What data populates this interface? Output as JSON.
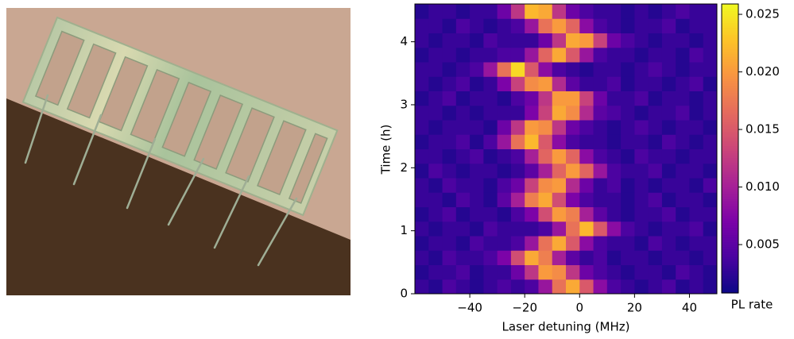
{
  "chart_data": {
    "type": "heatmap",
    "xlabel": "Laser detuning (MHz)",
    "ylabel": "Time (h)",
    "colorbar_label": "PL rate",
    "colormap": "plasma",
    "xlim": [
      -60,
      50
    ],
    "ylim": [
      0,
      4.6
    ],
    "xticks": [
      {
        "value": -40,
        "label": "−40"
      },
      {
        "value": -20,
        "label": "−20"
      },
      0,
      20,
      40
    ],
    "yticks": [
      0,
      1,
      2,
      3,
      4
    ],
    "zlim": [
      0.0008,
      0.0259
    ],
    "zticks": [
      0.005,
      {
        "value": 0.01,
        "label": "0.010"
      },
      0.015,
      {
        "value": 0.02,
        "label": "0.020"
      },
      0.025
    ],
    "xbins": [
      -60,
      -55,
      -50,
      -45,
      -40,
      -35,
      -30,
      -25,
      -20,
      -15,
      -10,
      -5,
      0,
      5,
      10,
      15,
      20,
      25,
      30,
      35,
      40,
      45,
      50
    ],
    "ybins": [
      0,
      0.23,
      0.46,
      0.69,
      0.92,
      1.15,
      1.38,
      1.61,
      1.84,
      2.07,
      2.3,
      2.53,
      2.76,
      2.99,
      3.22,
      3.45,
      3.68,
      3.91,
      4.14,
      4.37,
      4.6
    ],
    "z": [
      [
        0.003,
        0.002,
        0.004,
        0.003,
        0.002,
        0.003,
        0.004,
        0.003,
        0.004,
        0.009,
        0.017,
        0.021,
        0.015,
        0.008,
        0.004,
        0.003,
        0.002,
        0.003,
        0.004,
        0.002,
        0.003,
        0.002
      ],
      [
        0.002,
        0.003,
        0.003,
        0.004,
        0.002,
        0.003,
        0.003,
        0.006,
        0.012,
        0.02,
        0.019,
        0.012,
        0.006,
        0.004,
        0.003,
        0.002,
        0.003,
        0.003,
        0.002,
        0.004,
        0.003,
        0.002
      ],
      [
        0.003,
        0.002,
        0.004,
        0.003,
        0.003,
        0.004,
        0.007,
        0.014,
        0.021,
        0.018,
        0.01,
        0.005,
        0.003,
        0.004,
        0.002,
        0.003,
        0.003,
        0.002,
        0.003,
        0.003,
        0.002,
        0.003
      ],
      [
        0.002,
        0.003,
        0.003,
        0.002,
        0.004,
        0.003,
        0.003,
        0.004,
        0.009,
        0.017,
        0.021,
        0.015,
        0.008,
        0.004,
        0.003,
        0.003,
        0.002,
        0.004,
        0.003,
        0.002,
        0.003,
        0.003
      ],
      [
        0.003,
        0.002,
        0.003,
        0.003,
        0.002,
        0.004,
        0.003,
        0.003,
        0.003,
        0.004,
        0.009,
        0.017,
        0.022,
        0.015,
        0.008,
        0.004,
        0.003,
        0.002,
        0.003,
        0.003,
        0.004,
        0.002
      ],
      [
        0.002,
        0.003,
        0.004,
        0.002,
        0.003,
        0.003,
        0.002,
        0.004,
        0.007,
        0.014,
        0.02,
        0.018,
        0.01,
        0.005,
        0.003,
        0.002,
        0.003,
        0.003,
        0.004,
        0.002,
        0.003,
        0.003
      ],
      [
        0.003,
        0.003,
        0.002,
        0.004,
        0.003,
        0.002,
        0.005,
        0.01,
        0.018,
        0.021,
        0.014,
        0.007,
        0.004,
        0.003,
        0.003,
        0.002,
        0.003,
        0.004,
        0.002,
        0.003,
        0.003,
        0.002
      ],
      [
        0.003,
        0.002,
        0.004,
        0.003,
        0.003,
        0.002,
        0.004,
        0.006,
        0.013,
        0.019,
        0.02,
        0.011,
        0.006,
        0.003,
        0.004,
        0.002,
        0.003,
        0.002,
        0.003,
        0.003,
        0.002,
        0.004
      ],
      [
        0.002,
        0.004,
        0.003,
        0.002,
        0.003,
        0.003,
        0.002,
        0.003,
        0.005,
        0.01,
        0.016,
        0.02,
        0.016,
        0.009,
        0.004,
        0.003,
        0.003,
        0.004,
        0.002,
        0.003,
        0.003,
        0.002
      ],
      [
        0.003,
        0.003,
        0.002,
        0.003,
        0.004,
        0.002,
        0.003,
        0.004,
        0.01,
        0.016,
        0.02,
        0.016,
        0.008,
        0.004,
        0.003,
        0.002,
        0.004,
        0.003,
        0.003,
        0.002,
        0.003,
        0.003
      ],
      [
        0.002,
        0.003,
        0.003,
        0.004,
        0.002,
        0.004,
        0.009,
        0.017,
        0.022,
        0.015,
        0.008,
        0.004,
        0.003,
        0.003,
        0.002,
        0.003,
        0.003,
        0.002,
        0.004,
        0.003,
        0.002,
        0.003
      ],
      [
        0.003,
        0.002,
        0.003,
        0.003,
        0.003,
        0.002,
        0.006,
        0.012,
        0.02,
        0.019,
        0.012,
        0.006,
        0.004,
        0.003,
        0.002,
        0.003,
        0.004,
        0.003,
        0.002,
        0.003,
        0.003,
        0.002
      ],
      [
        0.003,
        0.003,
        0.002,
        0.003,
        0.002,
        0.003,
        0.003,
        0.003,
        0.007,
        0.013,
        0.021,
        0.019,
        0.011,
        0.005,
        0.004,
        0.003,
        0.002,
        0.003,
        0.003,
        0.004,
        0.002,
        0.003
      ],
      [
        0.002,
        0.003,
        0.004,
        0.002,
        0.003,
        0.003,
        0.002,
        0.004,
        0.006,
        0.012,
        0.02,
        0.02,
        0.013,
        0.006,
        0.003,
        0.003,
        0.004,
        0.002,
        0.003,
        0.003,
        0.002,
        0.003
      ],
      [
        0.003,
        0.002,
        0.003,
        0.004,
        0.002,
        0.003,
        0.007,
        0.013,
        0.019,
        0.02,
        0.011,
        0.005,
        0.003,
        0.003,
        0.004,
        0.002,
        0.003,
        0.003,
        0.002,
        0.003,
        0.004,
        0.002
      ],
      [
        0.003,
        0.003,
        0.002,
        0.003,
        0.004,
        0.009,
        0.017,
        0.024,
        0.015,
        0.008,
        0.004,
        0.003,
        0.002,
        0.003,
        0.003,
        0.002,
        0.003,
        0.004,
        0.003,
        0.002,
        0.003,
        0.003
      ],
      [
        0.002,
        0.003,
        0.003,
        0.002,
        0.003,
        0.003,
        0.004,
        0.004,
        0.009,
        0.016,
        0.021,
        0.015,
        0.009,
        0.004,
        0.003,
        0.003,
        0.002,
        0.003,
        0.003,
        0.002,
        0.004,
        0.003
      ],
      [
        0.003,
        0.002,
        0.003,
        0.003,
        0.002,
        0.004,
        0.003,
        0.003,
        0.003,
        0.006,
        0.012,
        0.021,
        0.02,
        0.013,
        0.006,
        0.004,
        0.003,
        0.002,
        0.003,
        0.003,
        0.002,
        0.003
      ],
      [
        0.003,
        0.003,
        0.002,
        0.004,
        0.003,
        0.002,
        0.003,
        0.004,
        0.009,
        0.017,
        0.02,
        0.016,
        0.008,
        0.004,
        0.003,
        0.002,
        0.003,
        0.003,
        0.004,
        0.002,
        0.003,
        0.003
      ],
      [
        0.002,
        0.003,
        0.003,
        0.002,
        0.003,
        0.003,
        0.006,
        0.012,
        0.022,
        0.021,
        0.012,
        0.006,
        0.004,
        0.003,
        0.003,
        0.002,
        0.003,
        0.002,
        0.003,
        0.004,
        0.003,
        0.003
      ]
    ]
  }
}
